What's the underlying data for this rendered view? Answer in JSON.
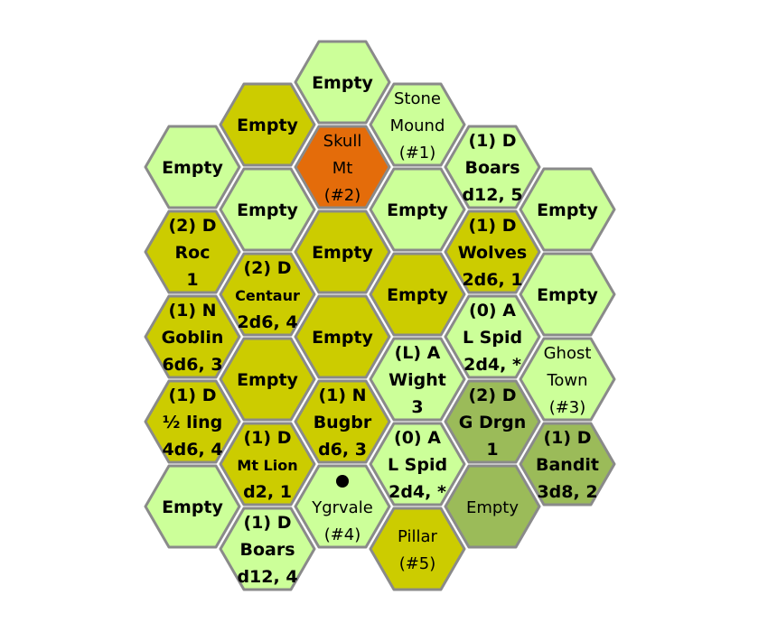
{
  "colors": {
    "light_green": "#ccff99",
    "olive_yellow": "#cccc00",
    "orange": "#e46c0a",
    "moss_green": "#9bbb59",
    "hex_border": "#8a8a8a"
  },
  "hexes": [
    {
      "id": "c3-r1",
      "col": 3,
      "row": 1.0,
      "fill": "light_green",
      "style": "bold",
      "lines": [
        "Empty"
      ]
    },
    {
      "id": "c2-r1",
      "col": 2,
      "row": 1.5,
      "fill": "olive_yellow",
      "style": "bold",
      "lines": [
        "Empty"
      ]
    },
    {
      "id": "c4-r1",
      "col": 4,
      "row": 1.5,
      "fill": "light_green",
      "style": "normal",
      "lines": [
        "Stone",
        "Mound",
        "(#1)"
      ]
    },
    {
      "id": "c1-r1",
      "col": 1,
      "row": 2.0,
      "fill": "light_green",
      "style": "bold",
      "lines": [
        "Empty"
      ]
    },
    {
      "id": "c3-r2",
      "col": 3,
      "row": 2.0,
      "fill": "orange",
      "style": "normal",
      "lines": [
        "Skull",
        "Mt",
        "(#2)"
      ]
    },
    {
      "id": "c5-r1",
      "col": 5,
      "row": 2.0,
      "fill": "light_green",
      "style": "bold",
      "lines": [
        "(1)  D",
        "Boars",
        "d12, 5"
      ]
    },
    {
      "id": "c2-r2",
      "col": 2,
      "row": 2.5,
      "fill": "light_green",
      "style": "bold",
      "lines": [
        "Empty"
      ]
    },
    {
      "id": "c4-r2",
      "col": 4,
      "row": 2.5,
      "fill": "light_green",
      "style": "bold",
      "lines": [
        "Empty"
      ]
    },
    {
      "id": "c6-r1",
      "col": 6,
      "row": 2.5,
      "fill": "light_green",
      "style": "bold",
      "lines": [
        "Empty"
      ]
    },
    {
      "id": "c1-r2",
      "col": 1,
      "row": 3.0,
      "fill": "olive_yellow",
      "style": "bold",
      "lines": [
        "(2) D",
        "Roc",
        "1"
      ]
    },
    {
      "id": "c3-r3",
      "col": 3,
      "row": 3.0,
      "fill": "olive_yellow",
      "style": "bold",
      "lines": [
        "Empty"
      ]
    },
    {
      "id": "c5-r2",
      "col": 5,
      "row": 3.0,
      "fill": "olive_yellow",
      "style": "bold",
      "lines": [
        "(1)  D",
        "Wolves",
        "2d6, 1"
      ]
    },
    {
      "id": "c2-r3",
      "col": 2,
      "row": 3.5,
      "fill": "olive_yellow",
      "style": "bold",
      "compact_middle": true,
      "lines": [
        "(2) D",
        "Centaur",
        "2d6, 4"
      ]
    },
    {
      "id": "c4-r3",
      "col": 4,
      "row": 3.5,
      "fill": "olive_yellow",
      "style": "bold",
      "lines": [
        "Empty"
      ]
    },
    {
      "id": "c6-r2",
      "col": 6,
      "row": 3.5,
      "fill": "light_green",
      "style": "bold",
      "lines": [
        "Empty"
      ]
    },
    {
      "id": "c1-r3",
      "col": 1,
      "row": 4.0,
      "fill": "olive_yellow",
      "style": "bold",
      "lines": [
        "(1)  N",
        "Goblin",
        "6d6, 3"
      ]
    },
    {
      "id": "c3-r4",
      "col": 3,
      "row": 4.0,
      "fill": "olive_yellow",
      "style": "bold",
      "lines": [
        "Empty"
      ]
    },
    {
      "id": "c5-r3",
      "col": 5,
      "row": 4.0,
      "fill": "light_green",
      "style": "bold",
      "lines": [
        "(0) A",
        "L Spid",
        "2d4, *"
      ]
    },
    {
      "id": "c2-r4",
      "col": 2,
      "row": 4.5,
      "fill": "olive_yellow",
      "style": "bold",
      "lines": [
        "Empty"
      ]
    },
    {
      "id": "c4-r4",
      "col": 4,
      "row": 4.5,
      "fill": "light_green",
      "style": "bold",
      "lines": [
        "(L) A",
        "Wight",
        "3"
      ]
    },
    {
      "id": "c6-r3",
      "col": 6,
      "row": 4.5,
      "fill": "light_green",
      "style": "normal",
      "lines": [
        "Ghost",
        "Town",
        "(#3)"
      ]
    },
    {
      "id": "c1-r4",
      "col": 1,
      "row": 5.0,
      "fill": "olive_yellow",
      "style": "bold",
      "lines": [
        "(1) D",
        "½ ling",
        "4d6, 4"
      ]
    },
    {
      "id": "c3-r5",
      "col": 3,
      "row": 5.0,
      "fill": "olive_yellow",
      "style": "bold",
      "lines": [
        "(1)  N",
        "Bugbr",
        "d6, 3"
      ]
    },
    {
      "id": "c5-r4",
      "col": 5,
      "row": 5.0,
      "fill": "moss_green",
      "style": "bold",
      "lines": [
        "(2) D",
        "G Drgn",
        "1"
      ]
    },
    {
      "id": "c2-r5",
      "col": 2,
      "row": 5.5,
      "fill": "olive_yellow",
      "style": "bold",
      "compact_middle": true,
      "lines": [
        "(1)  D",
        "Mt Lion",
        "d2, 1"
      ]
    },
    {
      "id": "c4-r5",
      "col": 4,
      "row": 5.5,
      "fill": "light_green",
      "style": "bold",
      "lines": [
        "(0) A",
        "L Spid",
        "2d4, *"
      ]
    },
    {
      "id": "c6-r4",
      "col": 6,
      "row": 5.5,
      "fill": "moss_green",
      "style": "bold",
      "lines": [
        "(1) D",
        "Bandit",
        "3d8, 2"
      ]
    },
    {
      "id": "c1-r5",
      "col": 1,
      "row": 6.0,
      "fill": "light_green",
      "style": "bold",
      "lines": [
        "Empty"
      ]
    },
    {
      "id": "c3-r6",
      "col": 3,
      "row": 6.0,
      "fill": "light_green",
      "style": "normal",
      "marker": true,
      "lines": [
        "Ygrvale",
        "(#4)"
      ]
    },
    {
      "id": "c5-r5",
      "col": 5,
      "row": 6.0,
      "fill": "moss_green",
      "style": "normal",
      "lines": [
        "Empty"
      ]
    },
    {
      "id": "c2-r6",
      "col": 2,
      "row": 6.5,
      "fill": "light_green",
      "style": "bold",
      "lines": [
        "(1) D",
        "Boars",
        "d12, 4"
      ]
    },
    {
      "id": "c4-r6",
      "col": 4,
      "row": 6.5,
      "fill": "olive_yellow",
      "style": "normal",
      "lines": [
        "Pillar",
        "(#5)"
      ]
    }
  ]
}
